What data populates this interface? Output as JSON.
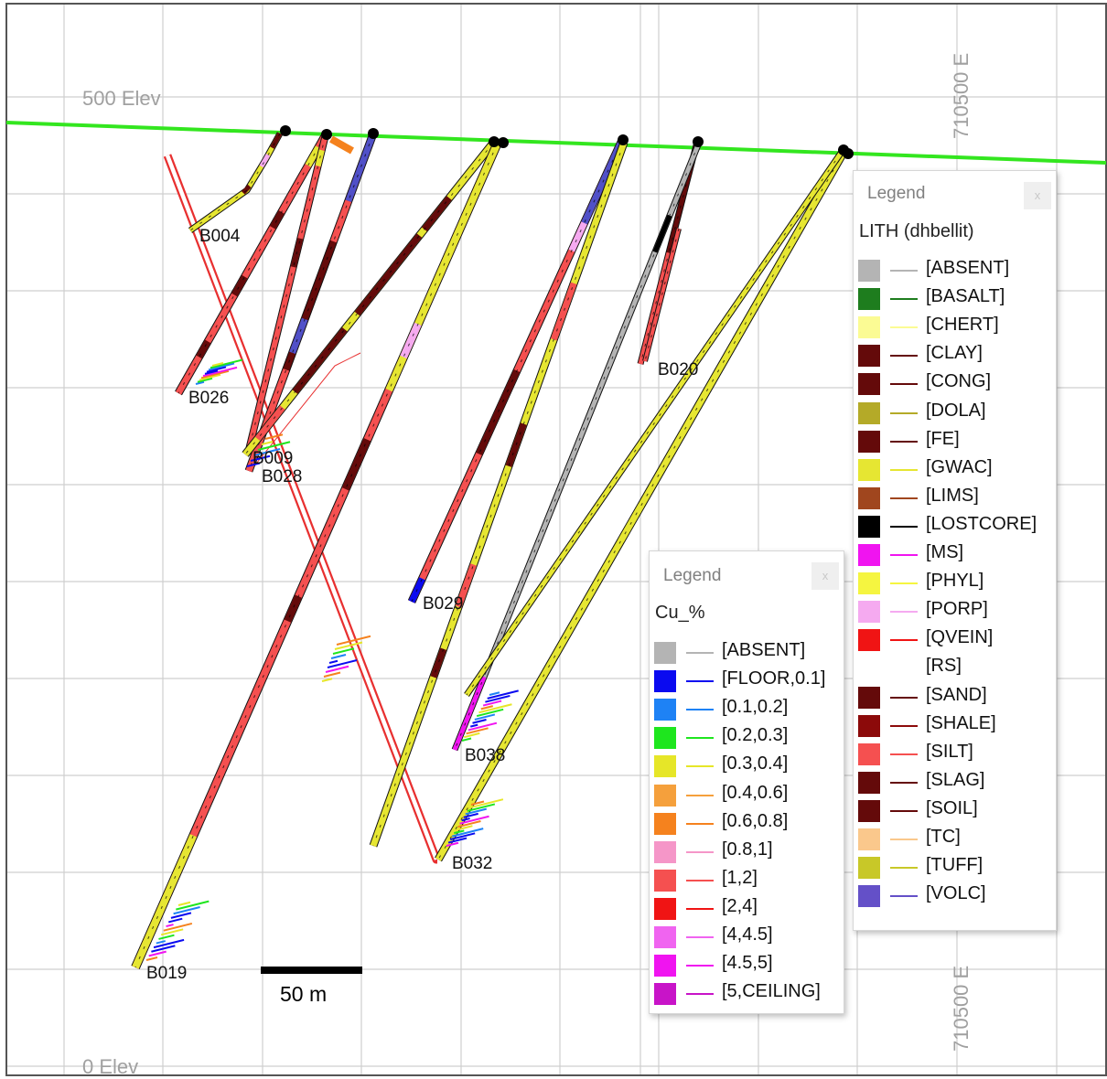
{
  "section": {
    "elevation_labels": [
      "500 Elev",
      "0 Elev"
    ],
    "easting_label": "710500 E",
    "scale_bar_label": "50 m",
    "topography_color": "#33e61f",
    "drillholes": [
      "B004",
      "B026",
      "B009",
      "B028",
      "B029",
      "B020",
      "B038",
      "B032",
      "B019"
    ]
  },
  "lith_legend": {
    "title": "Legend",
    "close": "x",
    "field": "LITH (dhbellit)",
    "items": [
      {
        "label": "[ABSENT]",
        "color": "#b4b4b4"
      },
      {
        "label": "[BASALT]",
        "color": "#1e7d1e"
      },
      {
        "label": "[CHERT]",
        "color": "#fbfb94"
      },
      {
        "label": "[CLAY]",
        "color": "#640a0a"
      },
      {
        "label": "[CONG]",
        "color": "#640a0a"
      },
      {
        "label": "[DOLA]",
        "color": "#b4aa28"
      },
      {
        "label": "[FE]",
        "color": "#640a0a"
      },
      {
        "label": "[GWAC]",
        "color": "#e6e632"
      },
      {
        "label": "[LIMS]",
        "color": "#a0461e"
      },
      {
        "label": "[LOSTCORE]",
        "color": "#000000"
      },
      {
        "label": "[MS]",
        "color": "#f014f0"
      },
      {
        "label": "[PHYL]",
        "color": "#f5f540"
      },
      {
        "label": "[PORP]",
        "color": "#f5aaf0"
      },
      {
        "label": "[QVEIN]",
        "color": "#f01414"
      },
      {
        "label": "[RS]",
        "color": ""
      },
      {
        "label": "[SAND]",
        "color": "#640a0a"
      },
      {
        "label": "[SHALE]",
        "color": "#8c0a0a"
      },
      {
        "label": "[SILT]",
        "color": "#f55050"
      },
      {
        "label": "[SLAG]",
        "color": "#640a0a"
      },
      {
        "label": "[SOIL]",
        "color": "#640a0a"
      },
      {
        "label": "[TC]",
        "color": "#fac88c"
      },
      {
        "label": "[TUFF]",
        "color": "#c8c828"
      },
      {
        "label": "[VOLC]",
        "color": "#6450c8"
      }
    ]
  },
  "cu_legend": {
    "title": "Legend",
    "close": "x",
    "field": "Cu_%",
    "items": [
      {
        "label": "[ABSENT]",
        "color": "#b4b4b4"
      },
      {
        "label": "[FLOOR,0.1]",
        "color": "#0a0af0"
      },
      {
        "label": "[0.1,0.2]",
        "color": "#1e82f5"
      },
      {
        "label": "[0.2,0.3]",
        "color": "#1ee61e"
      },
      {
        "label": "[0.3,0.4]",
        "color": "#e6e628"
      },
      {
        "label": "[0.4,0.6]",
        "color": "#f5a03c"
      },
      {
        "label": "[0.6,0.8]",
        "color": "#f5821e"
      },
      {
        "label": "[0.8,1]",
        "color": "#f596c8"
      },
      {
        "label": "[1,2]",
        "color": "#f55050"
      },
      {
        "label": "[2,4]",
        "color": "#f01414"
      },
      {
        "label": "[4,4.5]",
        "color": "#f064f0"
      },
      {
        "label": "[4.5,5]",
        "color": "#f014f0"
      },
      {
        "label": "[5,CEILING]",
        "color": "#c814c8"
      }
    ]
  }
}
